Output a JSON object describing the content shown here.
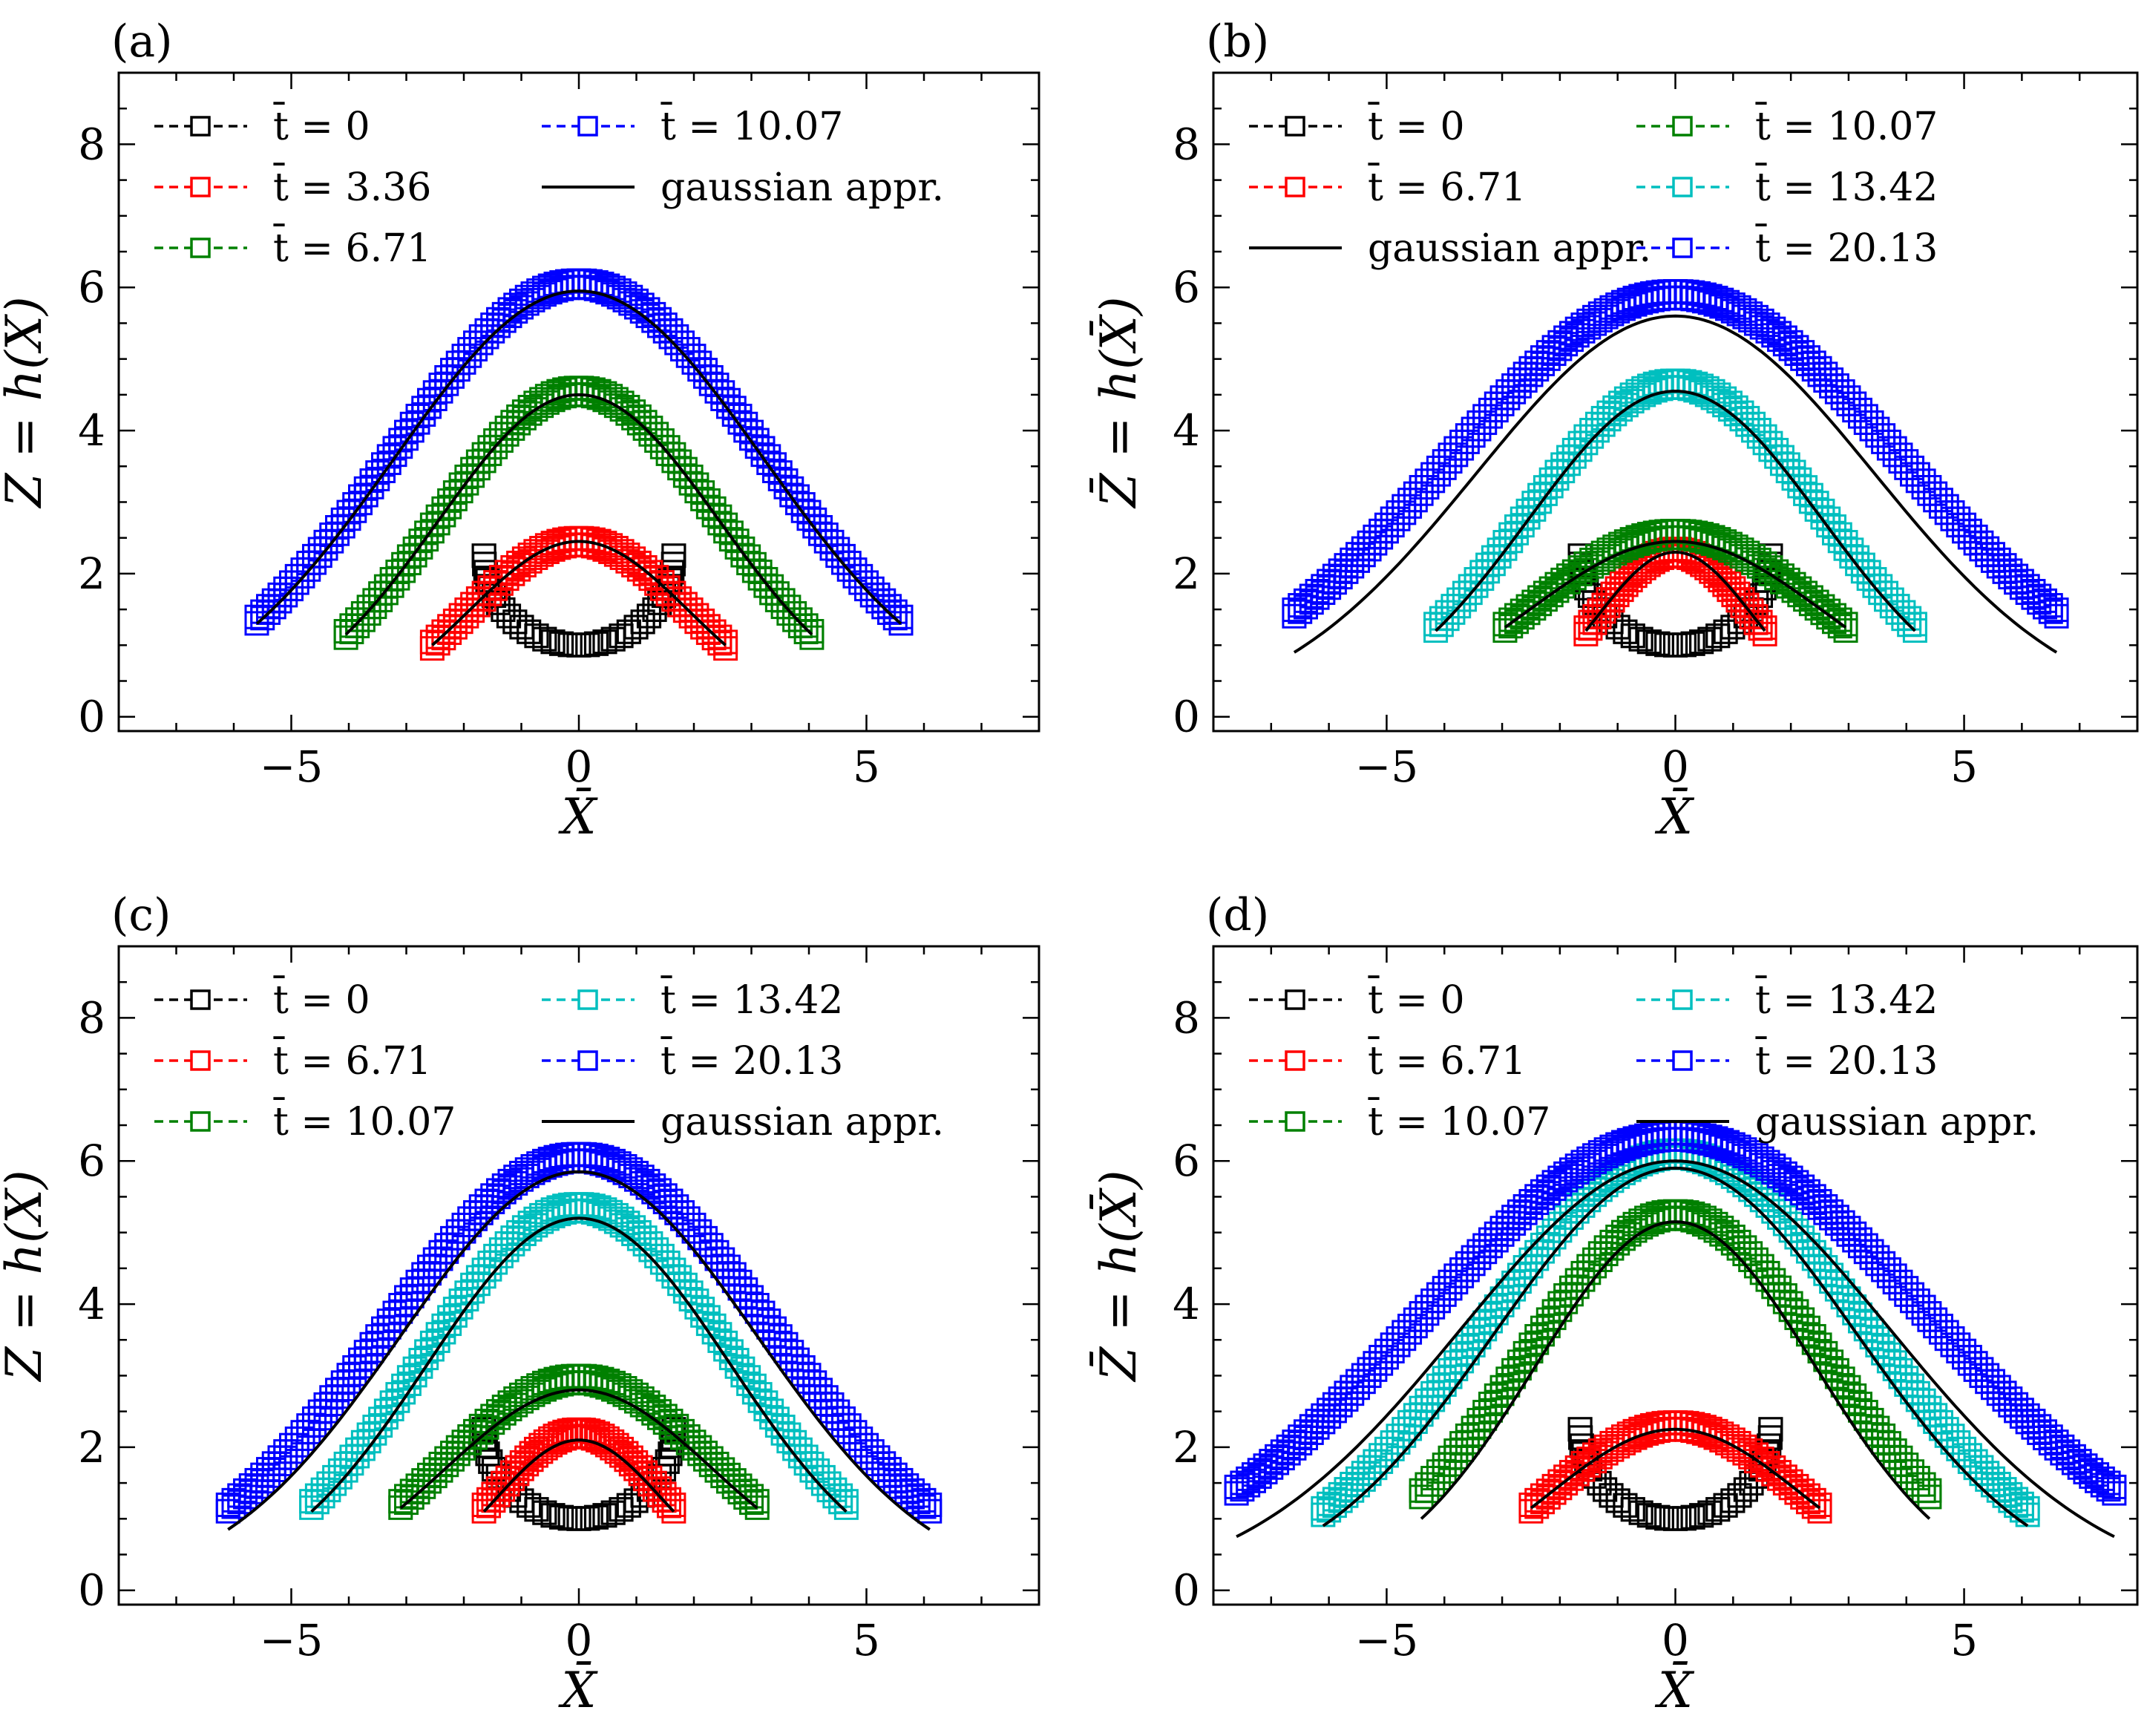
{
  "figure": {
    "ylabel": "Z̄ = h(X̄)",
    "xlabel": "X̄",
    "xlim": [
      -8,
      8
    ],
    "ylim": [
      -0.2,
      9
    ],
    "xticks": [
      "−5",
      "0",
      "5"
    ],
    "xtick_values": [
      -5,
      0,
      5
    ],
    "yticks": [
      "0",
      "2",
      "4",
      "6",
      "8"
    ],
    "ytick_values": [
      0,
      2,
      4,
      6,
      8
    ]
  },
  "chart_data": [
    {
      "type": "line",
      "panel": "(a)",
      "series": [
        {
          "name": "t̄ = 0",
          "legend_label": "t̄ = 0",
          "color": "#000000",
          "kind": "ring",
          "x_half": 1.65,
          "base": 1.0,
          "top": 2.25
        },
        {
          "name": "t̄ = 3.36",
          "legend_label": "t̄ = 3.36",
          "color": "#ff0000",
          "kind": "bump",
          "x_half": 2.55,
          "peak": 2.45,
          "end": 1.0
        },
        {
          "name": "t̄ = 6.71",
          "legend_label": "t̄ = 6.71",
          "color": "#008000",
          "kind": "bump",
          "x_half": 4.05,
          "peak": 4.55,
          "end": 1.15
        },
        {
          "name": "t̄ = 10.07",
          "legend_label": "t̄ = 10.07",
          "color": "#0000ff",
          "kind": "bump",
          "x_half": 5.6,
          "peak": 6.05,
          "end": 1.35
        }
      ],
      "gaussian": [
        {
          "peak": 2.45,
          "x_half": 2.55,
          "end": 1.0
        },
        {
          "peak": 4.5,
          "x_half": 4.05,
          "end": 1.15
        },
        {
          "peak": 5.95,
          "x_half": 5.6,
          "end": 1.3
        }
      ],
      "gaussian_label": "gaussian appr.",
      "legend": {
        "columns": 2,
        "col1": [
          0,
          1,
          2
        ],
        "col2": [
          "s3",
          "g"
        ]
      }
    },
    {
      "type": "line",
      "panel": "(b)",
      "series": [
        {
          "name": "t̄ = 0",
          "legend_label": "t̄ = 0",
          "color": "#000000",
          "kind": "ring",
          "x_half": 1.65,
          "base": 1.0,
          "top": 2.25
        },
        {
          "name": "t̄ = 6.71",
          "legend_label": "t̄ = 6.71",
          "color": "#ff0000",
          "kind": "bump",
          "x_half": 1.55,
          "peak": 2.3,
          "end": 1.2
        },
        {
          "name": "t̄ = 10.07",
          "legend_label": "t̄ = 10.07",
          "color": "#008000",
          "kind": "bump",
          "x_half": 2.95,
          "peak": 2.55,
          "end": 1.25
        },
        {
          "name": "t̄ = 13.42",
          "legend_label": "t̄ = 13.42",
          "color": "#00bfbf",
          "kind": "bump",
          "x_half": 4.15,
          "peak": 4.65,
          "end": 1.25
        },
        {
          "name": "t̄ = 20.13",
          "legend_label": "t̄ = 20.13",
          "color": "#0000ff",
          "kind": "bump",
          "x_half": 6.6,
          "peak": 5.9,
          "end": 1.45
        }
      ],
      "gaussian": [
        {
          "peak": 2.3,
          "x_half": 1.55,
          "end": 1.2
        },
        {
          "peak": 2.45,
          "x_half": 2.95,
          "end": 1.25
        },
        {
          "peak": 4.55,
          "x_half": 4.15,
          "end": 1.2
        },
        {
          "peak": 5.6,
          "x_half": 6.6,
          "end": 0.9
        }
      ],
      "gaussian_label": "gaussian appr.",
      "legend": {
        "columns": 2,
        "col1": [
          0,
          1,
          "g"
        ],
        "col2": [
          2,
          3,
          4
        ]
      }
    },
    {
      "type": "line",
      "panel": "(c)",
      "series": [
        {
          "name": "t̄ = 0",
          "legend_label": "t̄ = 0",
          "color": "#000000",
          "kind": "ring",
          "x_half": 1.65,
          "base": 1.0,
          "top": 2.25
        },
        {
          "name": "t̄ = 6.71",
          "legend_label": "t̄ = 6.71",
          "color": "#ff0000",
          "kind": "bump",
          "x_half": 1.65,
          "peak": 2.2,
          "end": 1.15
        },
        {
          "name": "t̄ = 10.07",
          "legend_label": "t̄ = 10.07",
          "color": "#008000",
          "kind": "bump",
          "x_half": 3.1,
          "peak": 2.95,
          "end": 1.2
        },
        {
          "name": "t̄ = 13.42",
          "legend_label": "t̄ = 13.42",
          "color": "#00bfbf",
          "kind": "bump",
          "x_half": 4.65,
          "peak": 5.35,
          "end": 1.2
        },
        {
          "name": "t̄ = 20.13",
          "legend_label": "t̄ = 20.13",
          "color": "#0000ff",
          "kind": "bump",
          "x_half": 6.1,
          "peak": 6.05,
          "end": 1.15
        }
      ],
      "gaussian": [
        {
          "peak": 2.1,
          "x_half": 1.65,
          "end": 1.1
        },
        {
          "peak": 2.8,
          "x_half": 3.1,
          "end": 1.15
        },
        {
          "peak": 5.2,
          "x_half": 4.65,
          "end": 1.1
        },
        {
          "peak": 5.85,
          "x_half": 6.1,
          "end": 0.85
        }
      ],
      "gaussian_label": "gaussian appr.",
      "legend": {
        "columns": 2,
        "col1": [
          0,
          1,
          2
        ],
        "col2": [
          3,
          4,
          "g"
        ]
      }
    },
    {
      "type": "line",
      "panel": "(d)",
      "series": [
        {
          "name": "t̄ = 0",
          "legend_label": "t̄ = 0",
          "color": "#000000",
          "kind": "ring",
          "x_half": 1.65,
          "base": 1.0,
          "top": 2.25
        },
        {
          "name": "t̄ = 6.71",
          "legend_label": "t̄ = 6.71",
          "color": "#ff0000",
          "kind": "bump",
          "x_half": 2.5,
          "peak": 2.3,
          "end": 1.15
        },
        {
          "name": "t̄ = 10.07",
          "legend_label": "t̄ = 10.07",
          "color": "#008000",
          "kind": "bump",
          "x_half": 4.4,
          "peak": 5.25,
          "end": 1.35
        },
        {
          "name": "t̄ = 13.42",
          "legend_label": "t̄ = 13.42",
          "color": "#00bfbf",
          "kind": "bump",
          "x_half": 6.1,
          "peak": 6.1,
          "end": 1.1
        },
        {
          "name": "t̄ = 20.13",
          "legend_label": "t̄ = 20.13",
          "color": "#0000ff",
          "kind": "bump",
          "x_half": 7.6,
          "peak": 6.35,
          "end": 1.4
        }
      ],
      "gaussian": [
        {
          "peak": 2.25,
          "x_half": 2.5,
          "end": 1.15
        },
        {
          "peak": 5.15,
          "x_half": 4.4,
          "end": 1.0
        },
        {
          "peak": 5.9,
          "x_half": 6.1,
          "end": 0.9
        },
        {
          "peak": 6.0,
          "x_half": 7.6,
          "end": 0.75
        }
      ],
      "gaussian_label": "gaussian appr.",
      "legend": {
        "columns": 2,
        "col1": [
          0,
          1,
          2
        ],
        "col2": [
          3,
          4,
          "g"
        ]
      }
    }
  ]
}
